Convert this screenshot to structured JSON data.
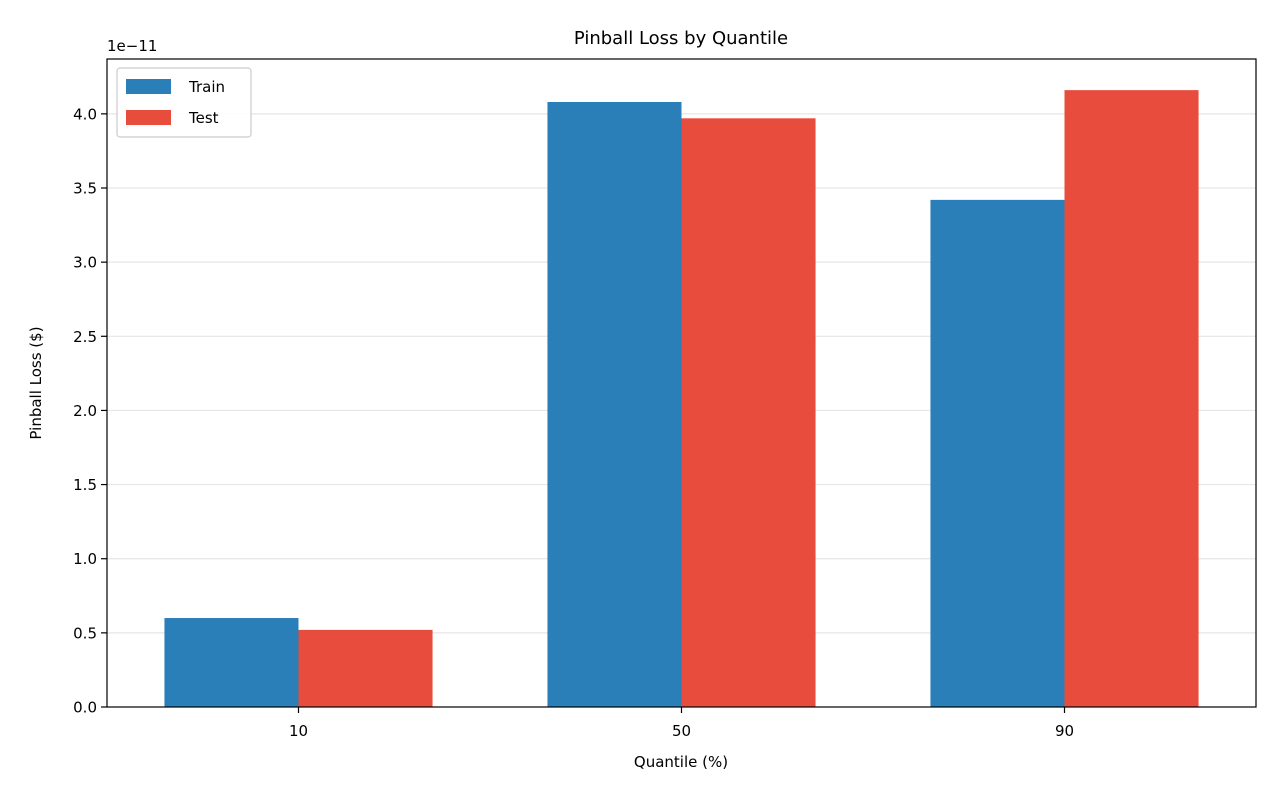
{
  "chart_data": {
    "type": "bar",
    "title": "Pinball Loss by Quantile",
    "xlabel": "Quantile (%)",
    "ylabel": "Pinball Loss ($)",
    "y_offset_label": "1e−11",
    "y_scale_factor": 1e-11,
    "categories": [
      "10",
      "50",
      "90"
    ],
    "series": [
      {
        "name": "Train",
        "color": "#2a7fb8",
        "values": [
          6e-12,
          4.08e-11,
          3.42e-11
        ]
      },
      {
        "name": "Test",
        "color": "#e74c3c",
        "values": [
          5.2e-12,
          3.97e-11,
          4.16e-11
        ]
      }
    ],
    "ylim": [
      0,
      4.37e-11
    ],
    "yticks": [
      0,
      5e-12,
      1e-11,
      1.5e-11,
      2e-11,
      2.5e-11,
      3e-11,
      3.5e-11,
      4e-11
    ],
    "ytick_labels": [
      "0.0",
      "0.5",
      "1.0",
      "1.5",
      "2.0",
      "2.5",
      "3.0",
      "3.5",
      "4.0"
    ],
    "grid": true,
    "grid_axis": "y",
    "legend_position": "top-left"
  }
}
